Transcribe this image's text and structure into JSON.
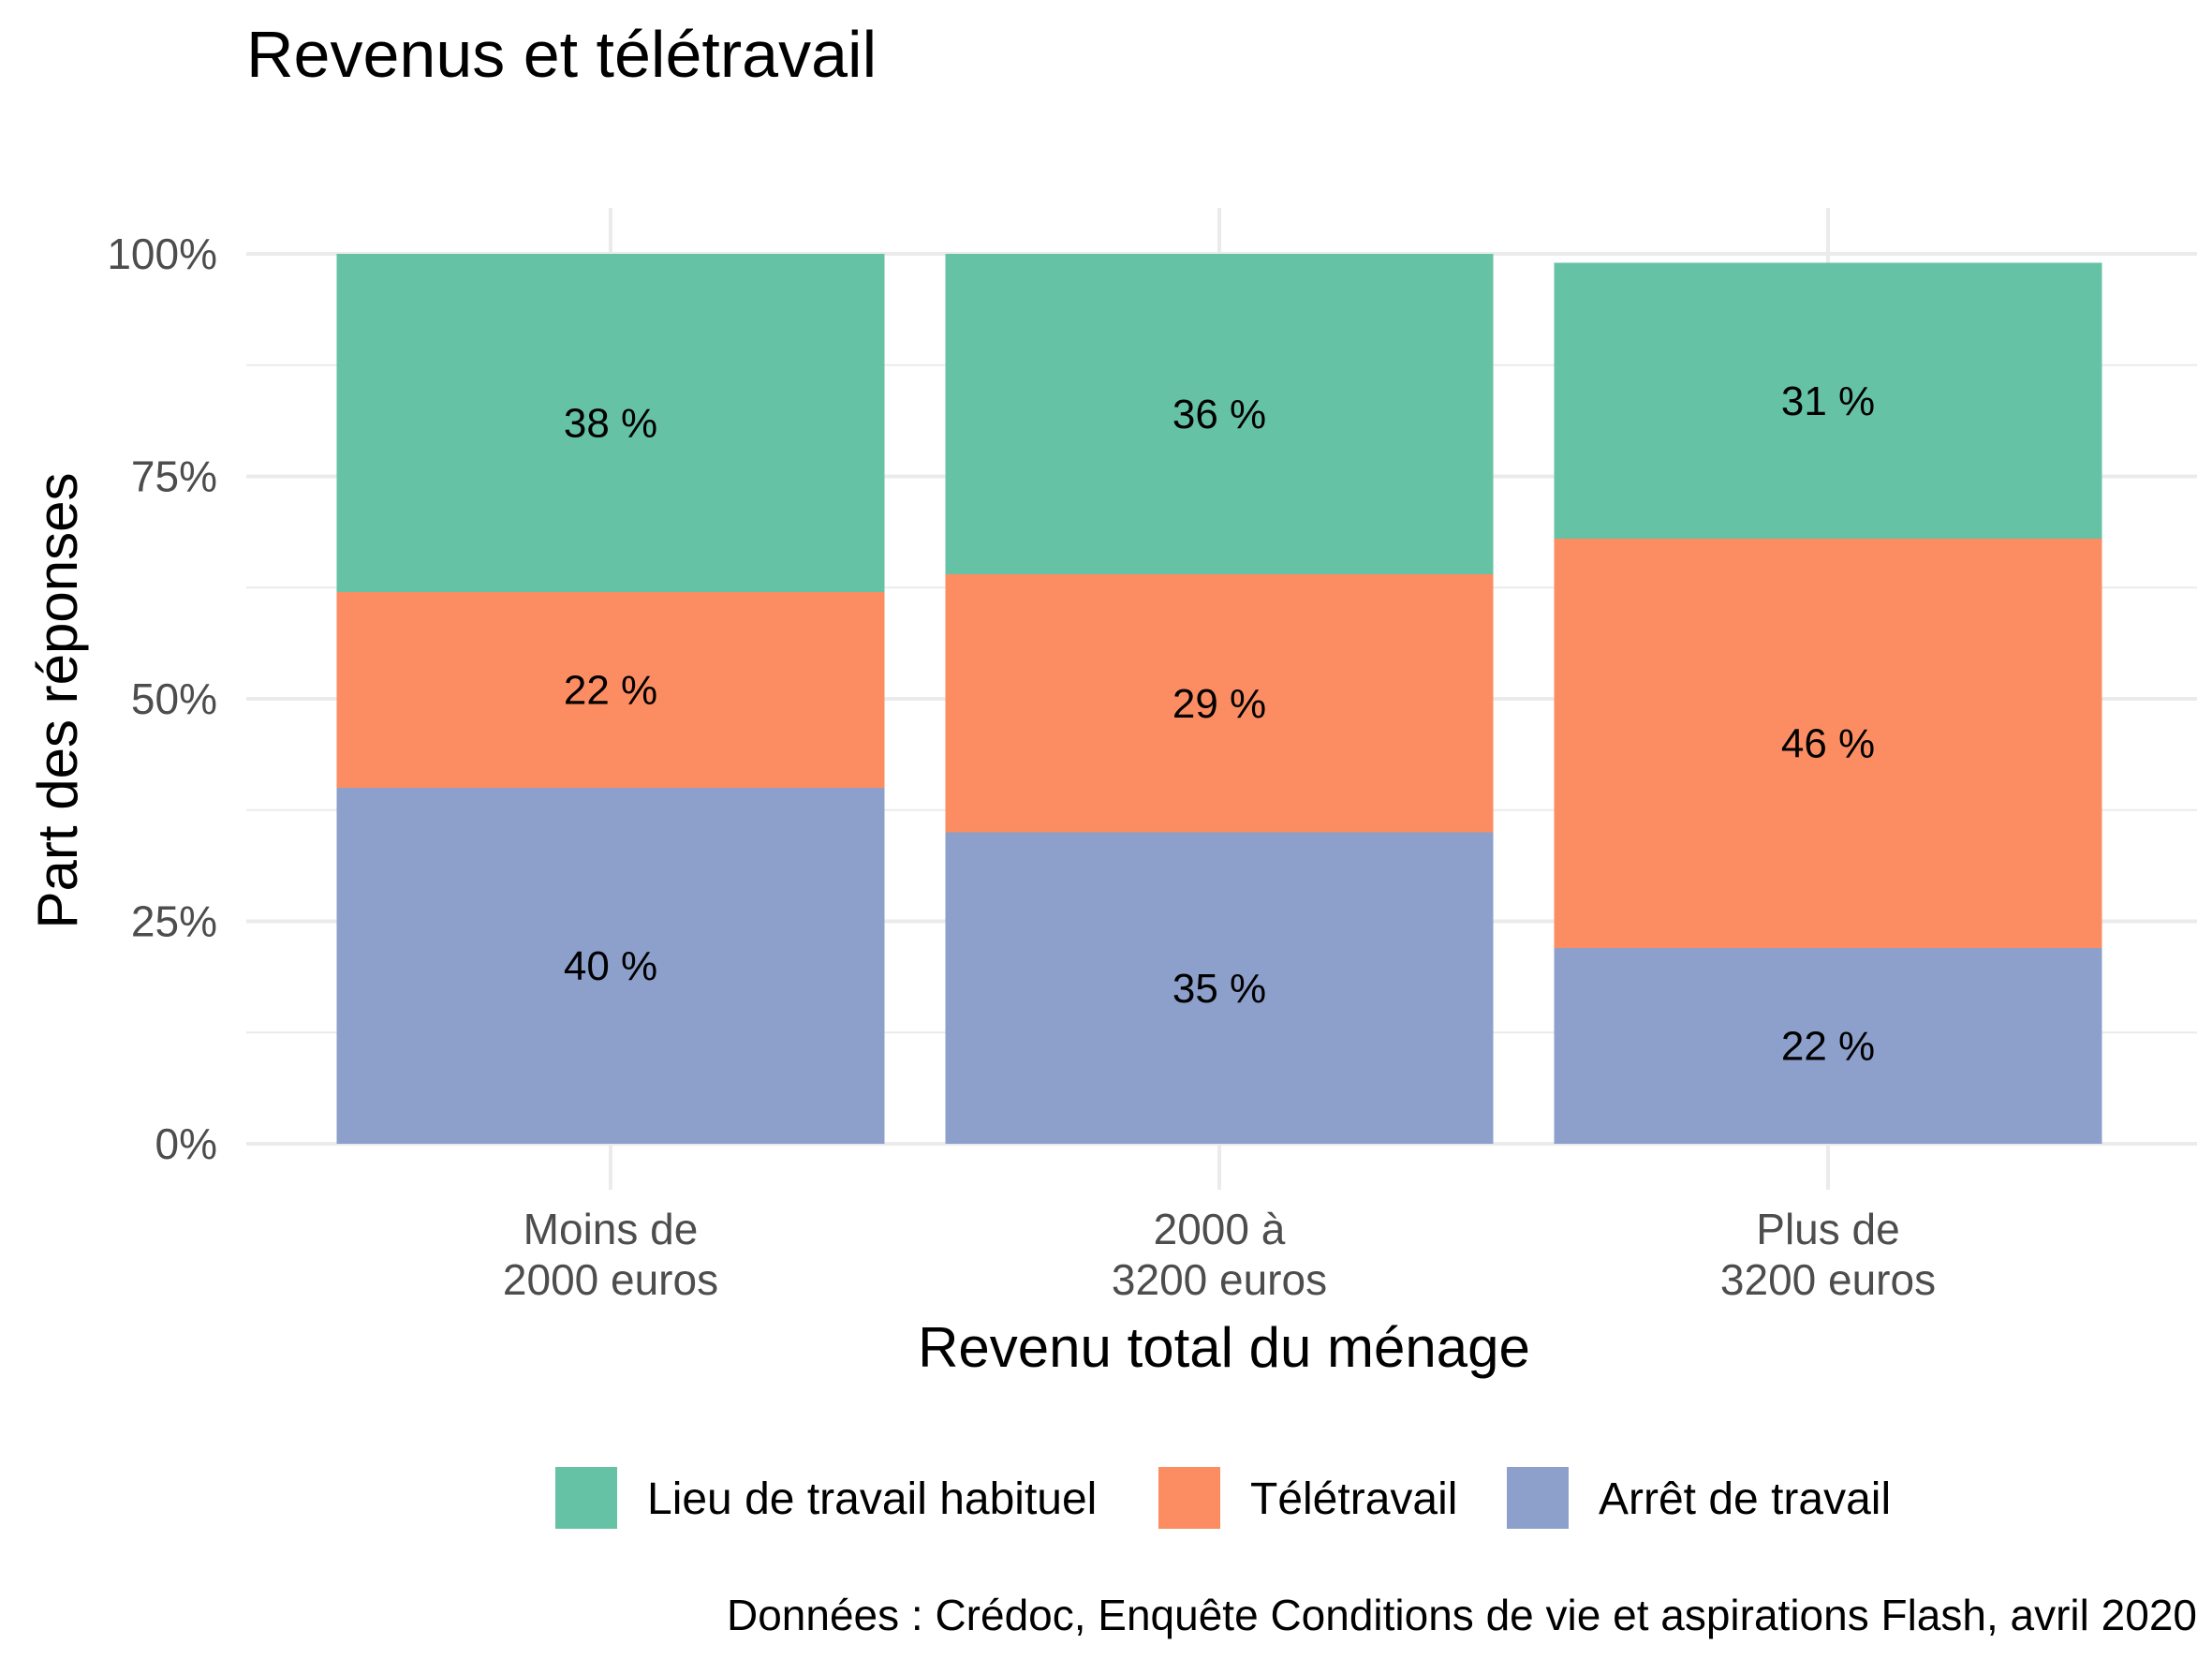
{
  "chart_data": {
    "type": "bar",
    "stacked": true,
    "title": "Revenus et télétravail",
    "xlabel": "Revenu total du ménage",
    "ylabel": "Part des réponses",
    "ylim": [
      0,
      1
    ],
    "yticks": [
      {
        "value": 0,
        "label": "0%"
      },
      {
        "value": 0.25,
        "label": "25%"
      },
      {
        "value": 0.5,
        "label": "50%"
      },
      {
        "value": 0.75,
        "label": "75%"
      },
      {
        "value": 1,
        "label": "100%"
      }
    ],
    "categories": [
      [
        "Moins de",
        "2000 euros"
      ],
      [
        "2000 à",
        "3200 euros"
      ],
      [
        "Plus de",
        "3200 euros"
      ]
    ],
    "series": [
      {
        "name": "Arrêt de travail",
        "color": "#8DA0CB",
        "values": [
          0.4,
          0.35,
          0.22
        ],
        "labels": [
          "40 %",
          "35 %",
          "22 %"
        ]
      },
      {
        "name": "Télétravail",
        "color": "#FC8D62",
        "values": [
          0.22,
          0.29,
          0.46
        ],
        "labels": [
          "22 %",
          "29 %",
          "46 %"
        ]
      },
      {
        "name": "Lieu de travail habituel",
        "color": "#66C2A5",
        "values": [
          0.38,
          0.36,
          0.31
        ],
        "labels": [
          "38 %",
          "36 %",
          "31 %"
        ]
      }
    ],
    "legend": {
      "position": "bottom",
      "order": [
        "Lieu de travail habituel",
        "Télétravail",
        "Arrêt de travail"
      ]
    },
    "grid": true,
    "caption": "Données : Crédoc, Enquête Conditions de vie et aspirations Flash, avril 2020"
  }
}
